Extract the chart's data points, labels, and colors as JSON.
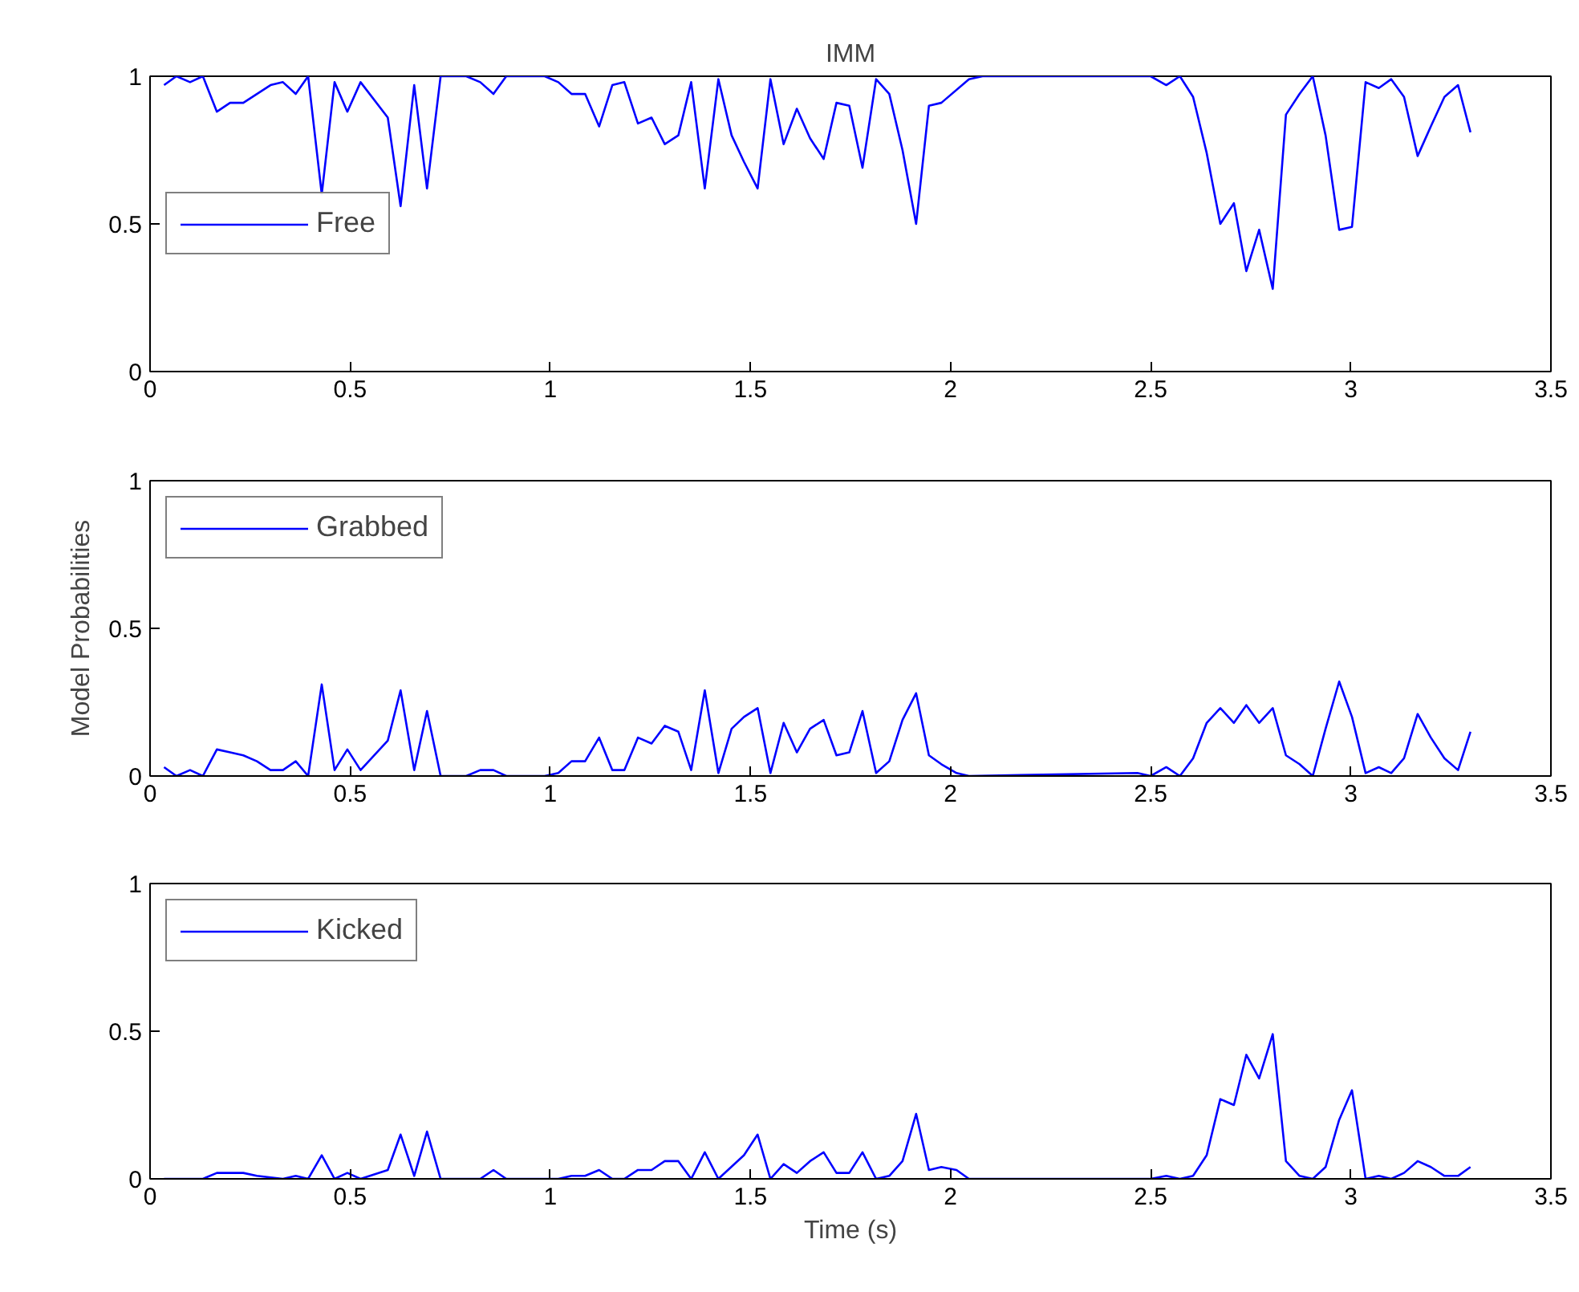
{
  "chart_data": [
    {
      "type": "line",
      "title": "IMM",
      "xlim": [
        0,
        3.5
      ],
      "xticks": [
        0,
        0.5,
        1,
        1.5,
        2,
        2.5,
        3,
        3.5
      ],
      "ylim": [
        0,
        1
      ],
      "yticks": [
        0,
        0.5,
        1
      ],
      "grid": false,
      "legend": "left",
      "line_style": "solid",
      "series": [
        {
          "name": "Free",
          "color": "#0000ff",
          "x": [
            0.035,
            0.066,
            0.1,
            0.132,
            0.167,
            0.2,
            0.233,
            0.267,
            0.301,
            0.332,
            0.364,
            0.395,
            0.429,
            0.461,
            0.493,
            0.526,
            0.594,
            0.626,
            0.66,
            0.692,
            0.726,
            0.79,
            0.825,
            0.858,
            0.89,
            0.986,
            1.02,
            1.053,
            1.087,
            1.122,
            1.155,
            1.185,
            1.219,
            1.253,
            1.286,
            1.32,
            1.352,
            1.386,
            1.42,
            1.453,
            1.484,
            1.518,
            1.55,
            1.583,
            1.616,
            1.649,
            1.683,
            1.715,
            1.747,
            1.78,
            1.814,
            1.847,
            1.88,
            1.914,
            1.946,
            1.977,
            2.046,
            2.08,
            2.467,
            2.5,
            2.539,
            2.573,
            2.606,
            2.64,
            2.674,
            2.708,
            2.739,
            2.771,
            2.805,
            2.838,
            2.872,
            2.905,
            2.937,
            2.971,
            3.003,
            3.037,
            3.07,
            3.101,
            3.133,
            3.167,
            3.2,
            3.234,
            3.268,
            3.299
          ],
          "values": [
            0.97,
            1.0,
            0.98,
            1.0,
            0.88,
            0.91,
            0.91,
            0.94,
            0.97,
            0.98,
            0.94,
            1.0,
            0.6,
            0.98,
            0.88,
            0.98,
            0.86,
            0.56,
            0.97,
            0.62,
            1.0,
            1.0,
            0.98,
            0.94,
            1.0,
            1.0,
            0.98,
            0.94,
            0.94,
            0.83,
            0.97,
            0.98,
            0.84,
            0.86,
            0.77,
            0.8,
            0.98,
            0.62,
            0.99,
            0.8,
            0.71,
            0.62,
            0.99,
            0.77,
            0.89,
            0.79,
            0.72,
            0.91,
            0.9,
            0.69,
            0.99,
            0.94,
            0.75,
            0.5,
            0.9,
            0.91,
            0.99,
            1.0,
            1.0,
            1.0,
            0.97,
            1.0,
            0.93,
            0.74,
            0.5,
            0.57,
            0.34,
            0.48,
            0.28,
            0.87,
            0.94,
            1.0,
            0.8,
            0.48,
            0.49,
            0.98,
            0.96,
            0.99,
            0.93,
            0.73,
            0.83,
            0.93,
            0.97,
            0.81
          ]
        }
      ]
    },
    {
      "type": "line",
      "ylabel": "Model Probabilities",
      "xlim": [
        0,
        3.5
      ],
      "xticks": [
        0,
        0.5,
        1,
        1.5,
        2,
        2.5,
        3,
        3.5
      ],
      "ylim": [
        0,
        1
      ],
      "yticks": [
        0,
        0.5,
        1
      ],
      "grid": false,
      "legend": "top left",
      "line_style": "solid",
      "series": [
        {
          "name": "Grabbed",
          "color": "#0000ff",
          "x": [
            0.035,
            0.066,
            0.1,
            0.132,
            0.167,
            0.2,
            0.233,
            0.267,
            0.301,
            0.332,
            0.364,
            0.395,
            0.429,
            0.461,
            0.493,
            0.526,
            0.594,
            0.626,
            0.66,
            0.692,
            0.726,
            0.79,
            0.825,
            0.858,
            0.89,
            0.986,
            1.02,
            1.053,
            1.087,
            1.122,
            1.155,
            1.185,
            1.219,
            1.253,
            1.286,
            1.32,
            1.352,
            1.386,
            1.42,
            1.453,
            1.484,
            1.518,
            1.55,
            1.583,
            1.616,
            1.649,
            1.683,
            1.715,
            1.747,
            1.78,
            1.814,
            1.847,
            1.88,
            1.914,
            1.946,
            1.977,
            2.015,
            2.046,
            2.467,
            2.5,
            2.539,
            2.573,
            2.606,
            2.64,
            2.674,
            2.708,
            2.739,
            2.771,
            2.805,
            2.838,
            2.872,
            2.905,
            2.937,
            2.971,
            3.003,
            3.037,
            3.07,
            3.101,
            3.133,
            3.167,
            3.2,
            3.234,
            3.268,
            3.299
          ],
          "values": [
            0.03,
            0.0,
            0.02,
            0.0,
            0.09,
            0.08,
            0.07,
            0.05,
            0.02,
            0.02,
            0.05,
            0.0,
            0.31,
            0.02,
            0.09,
            0.02,
            0.12,
            0.29,
            0.02,
            0.22,
            0.0,
            0.0,
            0.02,
            0.02,
            0.0,
            0.0,
            0.01,
            0.05,
            0.05,
            0.13,
            0.02,
            0.02,
            0.13,
            0.11,
            0.17,
            0.15,
            0.02,
            0.29,
            0.01,
            0.16,
            0.2,
            0.23,
            0.01,
            0.18,
            0.08,
            0.16,
            0.19,
            0.07,
            0.08,
            0.22,
            0.01,
            0.05,
            0.19,
            0.28,
            0.07,
            0.04,
            0.01,
            0.0,
            0.01,
            0.0,
            0.03,
            0.0,
            0.06,
            0.18,
            0.23,
            0.18,
            0.24,
            0.18,
            0.23,
            0.07,
            0.04,
            0.0,
            0.16,
            0.32,
            0.2,
            0.01,
            0.03,
            0.01,
            0.06,
            0.21,
            0.13,
            0.06,
            0.02,
            0.15
          ]
        }
      ]
    },
    {
      "type": "line",
      "xlabel": "Time (s)",
      "xlim": [
        0,
        3.5
      ],
      "xticks": [
        0,
        0.5,
        1,
        1.5,
        2,
        2.5,
        3,
        3.5
      ],
      "ylim": [
        0,
        1
      ],
      "yticks": [
        0,
        0.5,
        1
      ],
      "grid": false,
      "legend": "top left",
      "line_style": "solid",
      "series": [
        {
          "name": "Kicked",
          "color": "#0000ff",
          "x": [
            0.035,
            0.1,
            0.132,
            0.167,
            0.2,
            0.233,
            0.267,
            0.332,
            0.364,
            0.395,
            0.429,
            0.461,
            0.493,
            0.526,
            0.594,
            0.626,
            0.66,
            0.692,
            0.726,
            0.825,
            0.858,
            0.89,
            1.02,
            1.053,
            1.087,
            1.122,
            1.155,
            1.185,
            1.219,
            1.253,
            1.286,
            1.32,
            1.352,
            1.386,
            1.42,
            1.484,
            1.518,
            1.55,
            1.583,
            1.616,
            1.649,
            1.683,
            1.715,
            1.747,
            1.78,
            1.814,
            1.847,
            1.88,
            1.914,
            1.946,
            1.977,
            2.015,
            2.046,
            2.08,
            2.5,
            2.539,
            2.573,
            2.606,
            2.64,
            2.674,
            2.708,
            2.739,
            2.771,
            2.805,
            2.838,
            2.872,
            2.905,
            2.937,
            2.971,
            3.003,
            3.037,
            3.07,
            3.101,
            3.133,
            3.167,
            3.2,
            3.234,
            3.268,
            3.299
          ],
          "values": [
            0.0,
            0.0,
            0.0,
            0.02,
            0.02,
            0.02,
            0.01,
            0.0,
            0.01,
            0.0,
            0.08,
            0.0,
            0.02,
            0.0,
            0.03,
            0.15,
            0.01,
            0.16,
            0.0,
            0.0,
            0.03,
            0.0,
            0.0,
            0.01,
            0.01,
            0.03,
            0.0,
            0.0,
            0.03,
            0.03,
            0.06,
            0.06,
            0.0,
            0.09,
            0.0,
            0.08,
            0.15,
            0.0,
            0.05,
            0.02,
            0.06,
            0.09,
            0.02,
            0.02,
            0.09,
            0.0,
            0.01,
            0.06,
            0.22,
            0.03,
            0.04,
            0.03,
            0.0,
            0.0,
            0.0,
            0.01,
            0.0,
            0.01,
            0.08,
            0.27,
            0.25,
            0.42,
            0.34,
            0.49,
            0.06,
            0.01,
            0.0,
            0.04,
            0.2,
            0.3,
            0.0,
            0.01,
            0.0,
            0.02,
            0.06,
            0.04,
            0.01,
            0.01,
            0.04
          ]
        }
      ]
    }
  ]
}
